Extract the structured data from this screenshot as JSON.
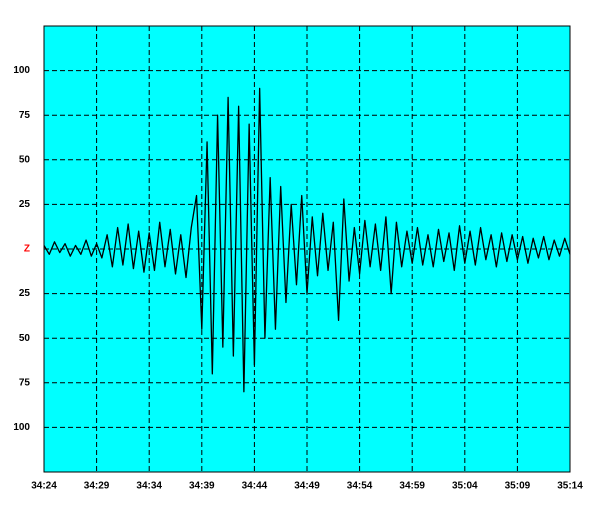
{
  "chart_data": {
    "type": "line",
    "background": "#00ffff",
    "color": "#000000",
    "zero_label_color": "#ff0000",
    "grid": true,
    "xlim": [
      2064,
      2114
    ],
    "xticks": [
      {
        "value": 2064,
        "label": "34:24"
      },
      {
        "value": 2069,
        "label": "34:29"
      },
      {
        "value": 2074,
        "label": "34:34"
      },
      {
        "value": 2079,
        "label": "34:39"
      },
      {
        "value": 2084,
        "label": "34:44"
      },
      {
        "value": 2089,
        "label": "34:49"
      },
      {
        "value": 2094,
        "label": "34:54"
      },
      {
        "value": 2099,
        "label": "34:59"
      },
      {
        "value": 2104,
        "label": "35:04"
      },
      {
        "value": 2109,
        "label": "35:09"
      },
      {
        "value": 2114,
        "label": "35:14"
      }
    ],
    "ylim": [
      -125,
      125
    ],
    "yticks": [
      100,
      75,
      50,
      25,
      {
        "value": 0,
        "label": "Z"
      },
      {
        "value": -25,
        "label": "25"
      },
      {
        "value": -50,
        "label": "50"
      },
      {
        "value": -75,
        "label": "75"
      },
      {
        "value": -100,
        "label": "100"
      }
    ],
    "x": [
      2064,
      2064.5,
      2065,
      2065.5,
      2066,
      2066.5,
      2067,
      2067.5,
      2068,
      2068.5,
      2069,
      2069.5,
      2070,
      2070.5,
      2071,
      2071.5,
      2072,
      2072.5,
      2073,
      2073.5,
      2074,
      2074.5,
      2075,
      2075.5,
      2076,
      2076.5,
      2077,
      2077.5,
      2078,
      2078.5,
      2079,
      2079.5,
      2080,
      2080.5,
      2081,
      2081.5,
      2082,
      2082.5,
      2083,
      2083.5,
      2084,
      2084.5,
      2085,
      2085.5,
      2086,
      2086.5,
      2087,
      2087.5,
      2088,
      2088.5,
      2089,
      2089.5,
      2090,
      2090.5,
      2091,
      2091.5,
      2092,
      2092.5,
      2093,
      2093.5,
      2094,
      2094.5,
      2095,
      2095.5,
      2096,
      2096.5,
      2097,
      2097.5,
      2098,
      2098.5,
      2099,
      2099.5,
      2100,
      2100.5,
      2101,
      2101.5,
      2102,
      2102.5,
      2103,
      2103.5,
      2104,
      2104.5,
      2105,
      2105.5,
      2106,
      2106.5,
      2107,
      2107.5,
      2108,
      2108.5,
      2109,
      2109.5,
      2110,
      2110.5,
      2111,
      2111.5,
      2112,
      2112.5,
      2113,
      2113.5,
      2114
    ],
    "values": [
      2,
      -3,
      4,
      -2,
      3,
      -4,
      2,
      -3,
      5,
      -4,
      3,
      -5,
      8,
      -10,
      12,
      -9,
      14,
      -11,
      10,
      -13,
      9,
      -12,
      15,
      -10,
      11,
      -14,
      8,
      -16,
      12,
      30,
      -45,
      60,
      -70,
      75,
      -55,
      85,
      -60,
      80,
      -80,
      70,
      -65,
      90,
      -50,
      40,
      -45,
      35,
      -30,
      25,
      -20,
      30,
      -25,
      18,
      -15,
      20,
      -12,
      15,
      -40,
      28,
      -18,
      12,
      -14,
      16,
      -10,
      14,
      -12,
      18,
      -25,
      15,
      -10,
      10,
      -8,
      12,
      -9,
      8,
      -10,
      11,
      -7,
      9,
      -12,
      13,
      -8,
      10,
      -9,
      12,
      -6,
      8,
      -10,
      9,
      -7,
      8,
      -6,
      7,
      -8,
      6,
      -5,
      7,
      -6,
      5,
      -4,
      6,
      -3
    ]
  }
}
